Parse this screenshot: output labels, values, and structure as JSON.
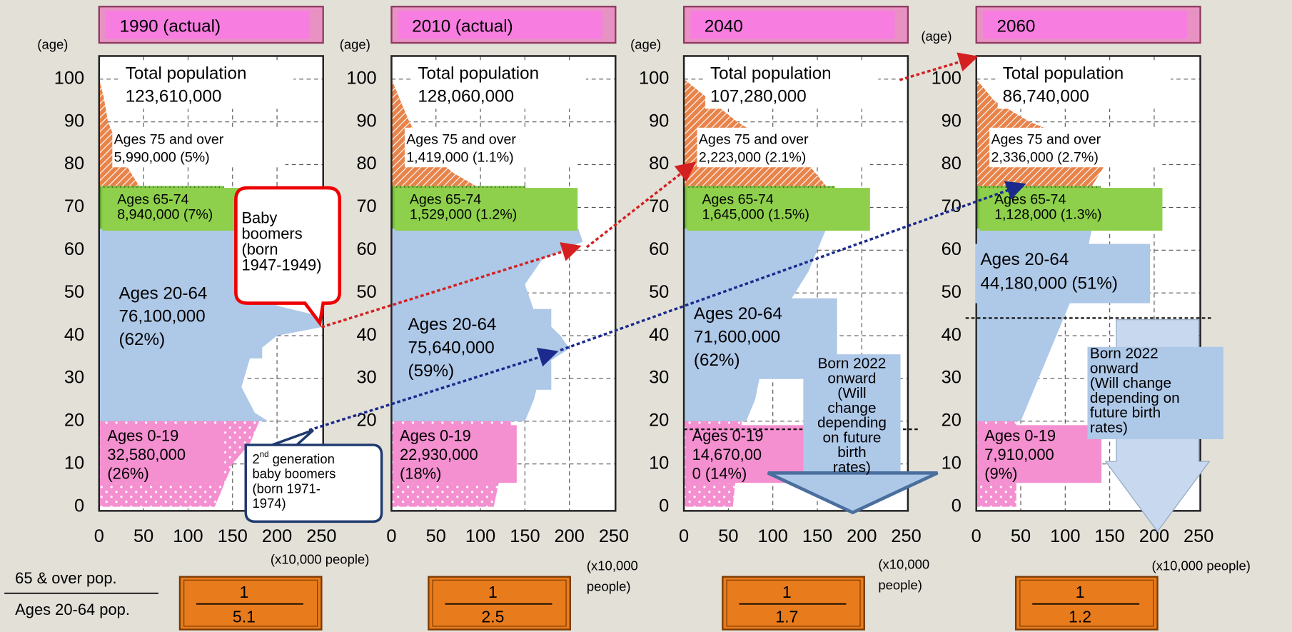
{
  "age_axis_label": "(age)",
  "age_ticks": [
    "100",
    "90",
    "80",
    "70",
    "60",
    "50",
    "40",
    "30",
    "20",
    "10",
    "0"
  ],
  "x_ticks": [
    "0",
    "50",
    "100",
    "150",
    "200",
    "250"
  ],
  "ratio_label": {
    "numerator": "65 & over pop.",
    "denominator": "Ages 20-64 pop."
  },
  "panels": [
    {
      "title": "1990 (actual)",
      "total": [
        "Total population",
        "123,610,000"
      ],
      "age75": [
        "Ages 75 and over",
        "5,990,000 (5%)"
      ],
      "age65": [
        "Ages 65-74",
        "8,940,000 (7%)"
      ],
      "age20": [
        "Ages 20-64",
        "76,100,000",
        "(62%)"
      ],
      "age0": [
        "Ages 0-19",
        "32,580,000",
        "(26%)"
      ],
      "x_unit": [
        "(x10,000 people)"
      ],
      "ratio": {
        "numerator": "1",
        "denominator": "5.1"
      }
    },
    {
      "title": "2010 (actual)",
      "total": [
        "Total population",
        "128,060,000"
      ],
      "age75": [
        "Ages 75 and over",
        "1,419,000 (1.1%)"
      ],
      "age65": [
        "Ages 65-74",
        "1,529,000 (1.2%)"
      ],
      "age20": [
        "Ages 20-64",
        "75,640,000",
        "(59%)"
      ],
      "age0": [
        "Ages 0-19",
        "22,930,000",
        "(18%)"
      ],
      "x_unit": [
        "(x10,000",
        "people)"
      ],
      "ratio": {
        "numerator": "1",
        "denominator": "2.5"
      }
    },
    {
      "title": "2040",
      "total": [
        "Total population",
        "107,280,000"
      ],
      "age75": [
        "Ages 75 and over",
        "2,223,000 (2.1%)"
      ],
      "age65": [
        "Ages 65-74",
        "1,645,000 (1.5%)"
      ],
      "age20": [
        "Ages 20-64",
        "71,600,000",
        "(62%)"
      ],
      "age0": [
        "Ages 0-19",
        "14,670,00",
        "0 (14%)"
      ],
      "x_unit": [
        "(x10,000",
        "people)"
      ],
      "ratio": {
        "numerator": "1",
        "denominator": "1.7"
      }
    },
    {
      "title": "2060",
      "total": [
        "Total population",
        "86,740,000"
      ],
      "age75": [
        "Ages 75 and over",
        "2,336,000 (2.7%)"
      ],
      "age65": [
        "Ages 65-74",
        "1,128,000 (1.3%)"
      ],
      "age20": [
        "Ages 20-64",
        "44,180,000 (51%)"
      ],
      "age0": [
        "Ages 0-19",
        "7,910,000",
        "(9%)"
      ],
      "x_unit": [
        "(x10,000 people)"
      ],
      "ratio": {
        "numerator": "1",
        "denominator": "1.2"
      }
    }
  ],
  "baby_boomers": [
    "Baby",
    "boomers",
    "(born",
    "1947-1949)"
  ],
  "second_generation": {
    "prefix": "2",
    "superscript": "nd",
    "lines": [
      " generation",
      "baby boomers",
      "(born 1971-",
      "1974)"
    ]
  },
  "born_2022_panel3": [
    "Born 2022",
    "onward",
    "(Will",
    "change",
    "depending",
    "on future",
    "birth",
    "rates)"
  ],
  "born_2022_panel4": [
    "Born 2022",
    "onward",
    "(Will change",
    "depending on",
    "future birth",
    "rates)"
  ]
}
